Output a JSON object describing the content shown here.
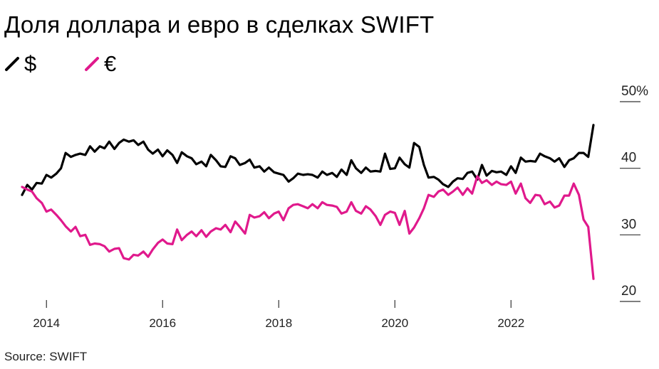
{
  "title": "Доля доллара и евро в сделках SWIFT",
  "source": "Source: SWIFT",
  "legend": [
    {
      "label": "$",
      "color": "#000000"
    },
    {
      "label": "€",
      "color": "#e0198c"
    }
  ],
  "chart_data": {
    "type": "line",
    "title": "Доля доллара и евро в сделках SWIFT",
    "xlabel": "",
    "ylabel": "",
    "xlim": [
      2013.6,
      2023.75
    ],
    "ylim": [
      18,
      52
    ],
    "x_ticks": [
      {
        "value": 2014,
        "label": "2014"
      },
      {
        "value": 2016,
        "label": "2016"
      },
      {
        "value": 2018,
        "label": "2018"
      },
      {
        "value": 2020,
        "label": "2020"
      },
      {
        "value": 2022,
        "label": "2022"
      }
    ],
    "y_ticks": [
      {
        "value": 50,
        "label": "50%"
      },
      {
        "value": 40,
        "label": "40"
      },
      {
        "value": 30,
        "label": "30"
      },
      {
        "value": 20,
        "label": "20"
      }
    ],
    "grid": false,
    "legend_position": "top-left",
    "series": [
      {
        "name": "$",
        "color": "#000000",
        "points": [
          [
            2013.58,
            36.0
          ],
          [
            2013.67,
            37.5
          ],
          [
            2013.75,
            36.8
          ],
          [
            2013.83,
            37.8
          ],
          [
            2013.92,
            37.7
          ],
          [
            2014.0,
            39.0
          ],
          [
            2014.08,
            38.6
          ],
          [
            2014.17,
            39.2
          ],
          [
            2014.25,
            40.0
          ],
          [
            2014.33,
            42.3
          ],
          [
            2014.42,
            41.7
          ],
          [
            2014.5,
            42.0
          ],
          [
            2014.58,
            42.2
          ],
          [
            2014.67,
            42.0
          ],
          [
            2014.75,
            43.3
          ],
          [
            2014.83,
            42.5
          ],
          [
            2014.92,
            43.3
          ],
          [
            2015.0,
            43.0
          ],
          [
            2015.08,
            44.0
          ],
          [
            2015.17,
            42.9
          ],
          [
            2015.25,
            43.8
          ],
          [
            2015.33,
            44.3
          ],
          [
            2015.42,
            44.0
          ],
          [
            2015.5,
            44.2
          ],
          [
            2015.58,
            43.5
          ],
          [
            2015.67,
            44.0
          ],
          [
            2015.75,
            42.8
          ],
          [
            2015.83,
            42.2
          ],
          [
            2015.92,
            42.8
          ],
          [
            2016.0,
            41.8
          ],
          [
            2016.08,
            42.7
          ],
          [
            2016.17,
            42.0
          ],
          [
            2016.25,
            40.8
          ],
          [
            2016.33,
            42.4
          ],
          [
            2016.42,
            41.8
          ],
          [
            2016.5,
            41.5
          ],
          [
            2016.58,
            40.6
          ],
          [
            2016.67,
            41.0
          ],
          [
            2016.75,
            40.3
          ],
          [
            2016.83,
            42.0
          ],
          [
            2016.92,
            41.2
          ],
          [
            2017.0,
            40.3
          ],
          [
            2017.08,
            40.2
          ],
          [
            2017.17,
            41.8
          ],
          [
            2017.25,
            41.5
          ],
          [
            2017.33,
            40.5
          ],
          [
            2017.42,
            40.8
          ],
          [
            2017.5,
            41.3
          ],
          [
            2017.58,
            40.1
          ],
          [
            2017.67,
            40.3
          ],
          [
            2017.75,
            39.5
          ],
          [
            2017.83,
            40.1
          ],
          [
            2017.92,
            39.4
          ],
          [
            2018.0,
            39.2
          ],
          [
            2018.08,
            39.0
          ],
          [
            2018.17,
            38.0
          ],
          [
            2018.25,
            38.5
          ],
          [
            2018.33,
            39.2
          ],
          [
            2018.42,
            39.0
          ],
          [
            2018.5,
            39.1
          ],
          [
            2018.58,
            39.0
          ],
          [
            2018.67,
            38.6
          ],
          [
            2018.75,
            39.5
          ],
          [
            2018.83,
            39.0
          ],
          [
            2018.92,
            39.3
          ],
          [
            2019.0,
            38.7
          ],
          [
            2019.08,
            39.8
          ],
          [
            2019.17,
            39.0
          ],
          [
            2019.25,
            41.2
          ],
          [
            2019.33,
            40.0
          ],
          [
            2019.42,
            39.3
          ],
          [
            2019.5,
            40.1
          ],
          [
            2019.58,
            39.5
          ],
          [
            2019.67,
            39.6
          ],
          [
            2019.75,
            39.5
          ],
          [
            2019.83,
            42.2
          ],
          [
            2019.92,
            39.9
          ],
          [
            2020.0,
            40.0
          ],
          [
            2020.08,
            41.6
          ],
          [
            2020.17,
            40.6
          ],
          [
            2020.25,
            40.1
          ],
          [
            2020.33,
            43.8
          ],
          [
            2020.42,
            43.2
          ],
          [
            2020.5,
            40.5
          ],
          [
            2020.58,
            38.6
          ],
          [
            2020.67,
            38.7
          ],
          [
            2020.75,
            38.3
          ],
          [
            2020.83,
            37.6
          ],
          [
            2020.92,
            37.2
          ],
          [
            2021.0,
            38.0
          ],
          [
            2021.08,
            38.5
          ],
          [
            2021.17,
            38.4
          ],
          [
            2021.25,
            39.3
          ],
          [
            2021.33,
            39.5
          ],
          [
            2021.42,
            38.3
          ],
          [
            2021.5,
            40.5
          ],
          [
            2021.58,
            38.9
          ],
          [
            2021.67,
            39.6
          ],
          [
            2021.75,
            39.4
          ],
          [
            2021.83,
            39.5
          ],
          [
            2021.92,
            39.0
          ],
          [
            2022.0,
            40.3
          ],
          [
            2022.08,
            39.3
          ],
          [
            2022.17,
            41.6
          ],
          [
            2022.25,
            41.0
          ],
          [
            2022.33,
            41.1
          ],
          [
            2022.42,
            41.0
          ],
          [
            2022.5,
            42.2
          ],
          [
            2022.58,
            41.8
          ],
          [
            2022.67,
            41.5
          ],
          [
            2022.75,
            41.0
          ],
          [
            2022.83,
            41.5
          ],
          [
            2022.92,
            40.2
          ],
          [
            2023.0,
            41.2
          ],
          [
            2023.08,
            41.5
          ],
          [
            2023.17,
            42.3
          ],
          [
            2023.25,
            42.3
          ],
          [
            2023.33,
            41.7
          ],
          [
            2023.42,
            46.5
          ]
        ]
      },
      {
        "name": "€",
        "color": "#e0198c",
        "points": [
          [
            2013.58,
            37.2
          ],
          [
            2013.67,
            36.8
          ],
          [
            2013.75,
            36.5
          ],
          [
            2013.83,
            35.5
          ],
          [
            2013.92,
            34.8
          ],
          [
            2014.0,
            33.5
          ],
          [
            2014.08,
            33.8
          ],
          [
            2014.17,
            33.0
          ],
          [
            2014.25,
            32.2
          ],
          [
            2014.33,
            31.3
          ],
          [
            2014.42,
            30.5
          ],
          [
            2014.5,
            31.2
          ],
          [
            2014.58,
            29.8
          ],
          [
            2014.67,
            30.0
          ],
          [
            2014.75,
            28.5
          ],
          [
            2014.83,
            28.7
          ],
          [
            2014.92,
            28.6
          ],
          [
            2015.0,
            28.3
          ],
          [
            2015.08,
            27.5
          ],
          [
            2015.17,
            27.9
          ],
          [
            2015.25,
            28.0
          ],
          [
            2015.33,
            26.5
          ],
          [
            2015.42,
            26.3
          ],
          [
            2015.5,
            27.0
          ],
          [
            2015.58,
            26.9
          ],
          [
            2015.67,
            27.5
          ],
          [
            2015.75,
            26.7
          ],
          [
            2015.83,
            27.8
          ],
          [
            2015.92,
            28.8
          ],
          [
            2016.0,
            29.3
          ],
          [
            2016.08,
            28.7
          ],
          [
            2016.17,
            28.6
          ],
          [
            2016.25,
            30.8
          ],
          [
            2016.33,
            29.2
          ],
          [
            2016.42,
            30.0
          ],
          [
            2016.5,
            30.5
          ],
          [
            2016.58,
            29.8
          ],
          [
            2016.67,
            30.7
          ],
          [
            2016.75,
            29.7
          ],
          [
            2016.83,
            30.5
          ],
          [
            2016.92,
            31.0
          ],
          [
            2017.0,
            30.8
          ],
          [
            2017.08,
            31.5
          ],
          [
            2017.17,
            30.4
          ],
          [
            2017.25,
            32.0
          ],
          [
            2017.33,
            31.2
          ],
          [
            2017.42,
            30.2
          ],
          [
            2017.5,
            33.0
          ],
          [
            2017.58,
            32.6
          ],
          [
            2017.67,
            32.8
          ],
          [
            2017.75,
            33.4
          ],
          [
            2017.83,
            32.5
          ],
          [
            2017.92,
            33.2
          ],
          [
            2018.0,
            33.5
          ],
          [
            2018.08,
            32.2
          ],
          [
            2018.17,
            34.0
          ],
          [
            2018.25,
            34.5
          ],
          [
            2018.33,
            34.6
          ],
          [
            2018.42,
            34.3
          ],
          [
            2018.5,
            34.0
          ],
          [
            2018.58,
            34.6
          ],
          [
            2018.67,
            34.0
          ],
          [
            2018.75,
            34.9
          ],
          [
            2018.83,
            34.5
          ],
          [
            2018.92,
            34.4
          ],
          [
            2019.0,
            34.2
          ],
          [
            2019.08,
            33.2
          ],
          [
            2019.17,
            33.5
          ],
          [
            2019.25,
            34.9
          ],
          [
            2019.33,
            33.6
          ],
          [
            2019.42,
            33.2
          ],
          [
            2019.5,
            34.3
          ],
          [
            2019.58,
            33.8
          ],
          [
            2019.67,
            32.8
          ],
          [
            2019.75,
            31.5
          ],
          [
            2019.83,
            33.0
          ],
          [
            2019.92,
            33.5
          ],
          [
            2020.0,
            33.3
          ],
          [
            2020.08,
            31.5
          ],
          [
            2020.17,
            33.6
          ],
          [
            2020.25,
            30.2
          ],
          [
            2020.33,
            31.1
          ],
          [
            2020.42,
            32.5
          ],
          [
            2020.5,
            34.0
          ],
          [
            2020.58,
            36.0
          ],
          [
            2020.67,
            35.7
          ],
          [
            2020.75,
            36.5
          ],
          [
            2020.83,
            36.8
          ],
          [
            2020.92,
            36.0
          ],
          [
            2021.0,
            36.5
          ],
          [
            2021.08,
            37.1
          ],
          [
            2021.17,
            36.0
          ],
          [
            2021.25,
            37.0
          ],
          [
            2021.33,
            36.2
          ],
          [
            2021.42,
            38.8
          ],
          [
            2021.5,
            37.8
          ],
          [
            2021.58,
            38.2
          ],
          [
            2021.67,
            37.5
          ],
          [
            2021.75,
            38.0
          ],
          [
            2021.83,
            37.6
          ],
          [
            2021.92,
            37.5
          ],
          [
            2022.0,
            38.0
          ],
          [
            2022.08,
            36.2
          ],
          [
            2022.17,
            37.7
          ],
          [
            2022.25,
            35.5
          ],
          [
            2022.33,
            34.8
          ],
          [
            2022.42,
            36.0
          ],
          [
            2022.5,
            35.9
          ],
          [
            2022.58,
            34.6
          ],
          [
            2022.67,
            35.0
          ],
          [
            2022.75,
            34.1
          ],
          [
            2022.83,
            34.4
          ],
          [
            2022.92,
            35.9
          ],
          [
            2023.0,
            35.9
          ],
          [
            2023.08,
            37.7
          ],
          [
            2023.17,
            36.0
          ],
          [
            2023.25,
            32.3
          ],
          [
            2023.33,
            31.2
          ],
          [
            2023.42,
            23.4
          ]
        ]
      }
    ]
  }
}
